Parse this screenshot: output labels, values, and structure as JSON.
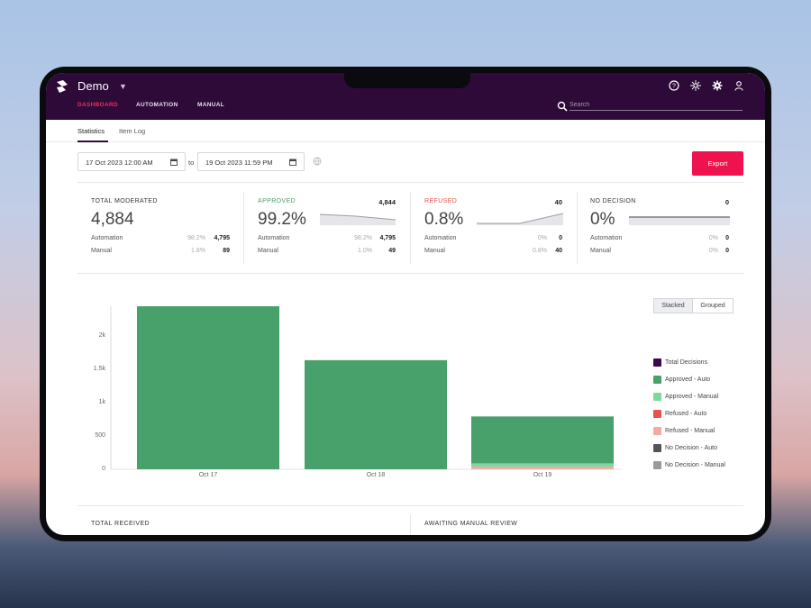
{
  "header": {
    "app_title": "Demo",
    "nav": [
      "DASHBOARD",
      "AUTOMATION",
      "MANUAL"
    ],
    "search_placeholder": "Search",
    "icons": [
      "help-icon",
      "network-icon",
      "settings-icon",
      "user-icon"
    ]
  },
  "tabs": [
    "Statistics",
    "Item Log"
  ],
  "filters": {
    "start_date": "17 Oct 2023 12:00 AM",
    "to": "to",
    "end_date": "19 Oct 2023 11:59 PM",
    "export_label": "Export"
  },
  "stats": {
    "total": {
      "label": "TOTAL MODERATED",
      "big": "4,884",
      "auto_label": "Automation",
      "auto_pct": "98.2%",
      "auto_num": "4,795",
      "manual_label": "Manual",
      "manual_pct": "1.8%",
      "manual_num": "89"
    },
    "approved": {
      "label": "APPROVED",
      "count": "4,844",
      "big": "99.2%",
      "auto_label": "Automation",
      "auto_pct": "98.2%",
      "auto_num": "4,795",
      "manual_label": "Manual",
      "manual_pct": "1.0%",
      "manual_num": "49"
    },
    "refused": {
      "label": "REFUSED",
      "count": "40",
      "big": "0.8%",
      "auto_label": "Automation",
      "auto_pct": "0%",
      "auto_num": "0",
      "manual_label": "Manual",
      "manual_pct": "0.8%",
      "manual_num": "40"
    },
    "nodecision": {
      "label": "NO DECISION",
      "count": "0",
      "big": "0%",
      "auto_label": "Automation",
      "auto_pct": "0%",
      "auto_num": "0",
      "manual_label": "Manual",
      "manual_pct": "0%",
      "manual_num": "0"
    }
  },
  "chart_controls": {
    "stacked": "Stacked",
    "grouped": "Grouped",
    "mode": "Stacked"
  },
  "chart_data": {
    "type": "bar",
    "stacked": true,
    "categories": [
      "Oct 17",
      "Oct 18",
      "Oct 19"
    ],
    "yticks": [
      "0",
      "500",
      "1k",
      "1.5k",
      "2k"
    ],
    "ylim": [
      0,
      2450
    ],
    "series": [
      {
        "name": "Total Decisions",
        "color": "#3b0a4a",
        "values": [
          0,
          0,
          0
        ]
      },
      {
        "name": "Approved - Auto",
        "color": "#48a06a",
        "values": [
          2450,
          1640,
          705
        ]
      },
      {
        "name": "Approved - Manual",
        "color": "#7fd8a2",
        "values": [
          0,
          0,
          49
        ]
      },
      {
        "name": "Refused - Auto",
        "color": "#e8524a",
        "values": [
          0,
          0,
          0
        ]
      },
      {
        "name": "Refused - Manual",
        "color": "#f4a9a2",
        "values": [
          0,
          0,
          40
        ]
      },
      {
        "name": "No Decision - Auto",
        "color": "#555555",
        "values": [
          0,
          0,
          0
        ]
      },
      {
        "name": "No Decision - Manual",
        "color": "#9a9a9a",
        "values": [
          0,
          0,
          0
        ]
      }
    ],
    "legend_position": "right"
  },
  "bottom": {
    "left": "TOTAL RECEIVED",
    "right": "AWAITING MANUAL REVIEW"
  }
}
